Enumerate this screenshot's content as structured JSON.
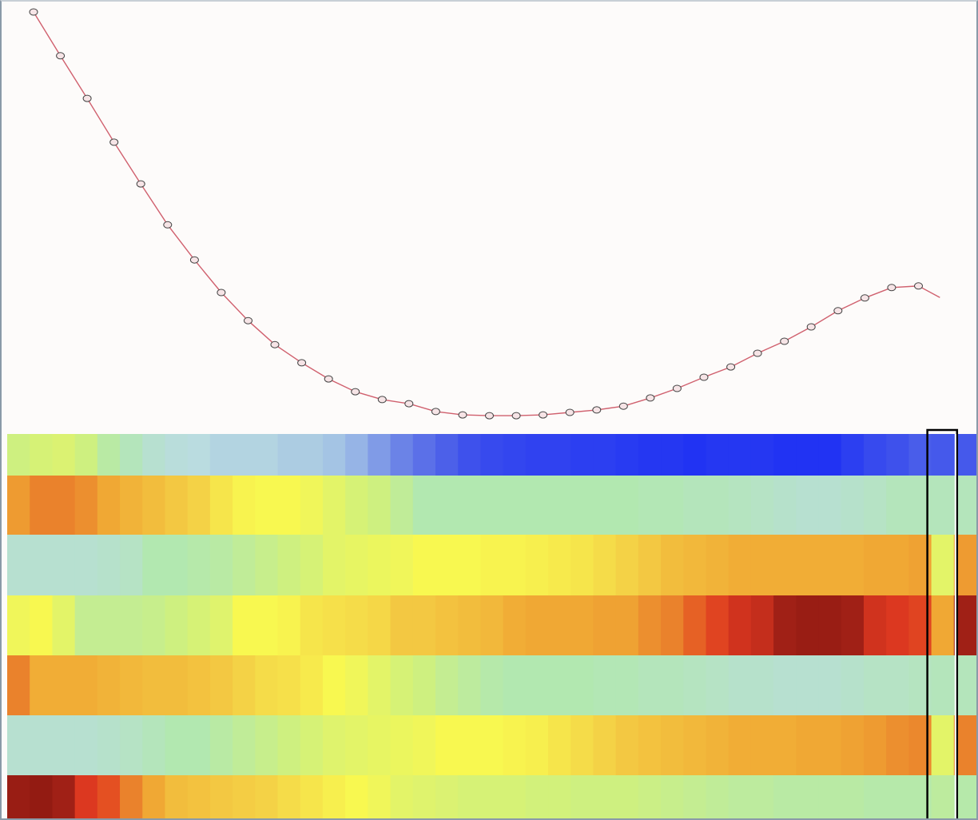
{
  "chart_data": [
    {
      "type": "line",
      "markers": "circle",
      "line_color": "#d0606e",
      "marker_stroke": "#444444",
      "marker_fill": "#f6e4e6",
      "axes_visible": false,
      "grid": false,
      "x": [
        1,
        2,
        3,
        4,
        5,
        6,
        7,
        8,
        9,
        10,
        11,
        12,
        13,
        14,
        15,
        16,
        17,
        18,
        19,
        20,
        21,
        22,
        23,
        24,
        25,
        26,
        27,
        28,
        29,
        30,
        31,
        32,
        33,
        34
      ],
      "y": [
        100,
        89.4,
        79.1,
        68.5,
        58.4,
        48.5,
        40.0,
        32.1,
        25.3,
        19.5,
        15.1,
        11.2,
        8.1,
        6.2,
        5.2,
        3.3,
        2.5,
        2.3,
        2.3,
        2.5,
        3.1,
        3.7,
        4.6,
        6.6,
        8.9,
        11.6,
        14.1,
        17.4,
        20.3,
        23.8,
        27.7,
        30.8,
        33.3,
        33.7
      ],
      "tail": {
        "x": 34.8,
        "y": 30.9
      }
    },
    {
      "type": "heatmap",
      "colormap": "jet (pastel)",
      "value_range": [
        0,
        1
      ],
      "selected_column": 41,
      "selection_color": "#000000",
      "rows": [
        [
          0.5,
          0.52,
          0.53,
          0.5,
          0.44,
          0.4,
          0.36,
          0.34,
          0.33,
          0.32,
          0.32,
          0.32,
          0.31,
          0.31,
          0.3,
          0.28,
          0.24,
          0.2,
          0.17,
          0.14,
          0.1,
          0.08,
          0.07,
          0.06,
          0.06,
          0.05,
          0.05,
          0.04,
          0.03,
          0.03,
          0.02,
          0.03,
          0.03,
          0.03,
          0.02,
          0.02,
          0.02,
          0.05,
          0.08,
          0.1,
          0.13,
          0.12,
          0.12
        ],
        [
          0.78,
          0.82,
          0.82,
          0.8,
          0.76,
          0.74,
          0.72,
          0.7,
          0.68,
          0.64,
          0.61,
          0.6,
          0.6,
          0.58,
          0.55,
          0.52,
          0.5,
          0.46,
          0.42,
          0.42,
          0.42,
          0.42,
          0.42,
          0.42,
          0.42,
          0.42,
          0.42,
          0.42,
          0.41,
          0.41,
          0.4,
          0.4,
          0.39,
          0.38,
          0.37,
          0.36,
          0.36,
          0.37,
          0.38,
          0.4,
          0.4,
          0.4,
          0.4
        ],
        [
          0.36,
          0.36,
          0.36,
          0.36,
          0.37,
          0.38,
          0.42,
          0.42,
          0.43,
          0.44,
          0.46,
          0.48,
          0.5,
          0.52,
          0.55,
          0.56,
          0.57,
          0.58,
          0.6,
          0.6,
          0.6,
          0.61,
          0.61,
          0.62,
          0.63,
          0.64,
          0.66,
          0.68,
          0.7,
          0.72,
          0.73,
          0.74,
          0.75,
          0.75,
          0.75,
          0.75,
          0.75,
          0.75,
          0.76,
          0.76,
          0.77,
          0.55,
          0.78
        ],
        [
          0.58,
          0.6,
          0.55,
          0.47,
          0.47,
          0.47,
          0.48,
          0.5,
          0.52,
          0.54,
          0.6,
          0.6,
          0.61,
          0.64,
          0.65,
          0.66,
          0.67,
          0.7,
          0.7,
          0.71,
          0.72,
          0.73,
          0.75,
          0.76,
          0.76,
          0.76,
          0.77,
          0.77,
          0.8,
          0.82,
          0.86,
          0.9,
          0.93,
          0.94,
          0.97,
          0.98,
          0.98,
          0.97,
          0.93,
          0.92,
          0.9,
          0.76,
          0.97
        ],
        [
          0.82,
          0.75,
          0.75,
          0.75,
          0.74,
          0.73,
          0.72,
          0.72,
          0.71,
          0.7,
          0.68,
          0.66,
          0.65,
          0.63,
          0.6,
          0.58,
          0.55,
          0.52,
          0.5,
          0.47,
          0.45,
          0.43,
          0.42,
          0.42,
          0.42,
          0.42,
          0.41,
          0.41,
          0.4,
          0.4,
          0.39,
          0.38,
          0.37,
          0.37,
          0.36,
          0.36,
          0.36,
          0.37,
          0.38,
          0.38,
          0.39,
          0.4,
          0.4
        ],
        [
          0.36,
          0.36,
          0.36,
          0.36,
          0.37,
          0.38,
          0.4,
          0.42,
          0.42,
          0.44,
          0.46,
          0.48,
          0.5,
          0.52,
          0.54,
          0.55,
          0.56,
          0.57,
          0.58,
          0.6,
          0.6,
          0.6,
          0.61,
          0.62,
          0.64,
          0.66,
          0.68,
          0.7,
          0.71,
          0.72,
          0.73,
          0.74,
          0.75,
          0.75,
          0.75,
          0.76,
          0.76,
          0.77,
          0.78,
          0.8,
          0.81,
          0.55,
          0.82
        ],
        [
          0.98,
          0.99,
          0.97,
          0.92,
          0.88,
          0.82,
          0.76,
          0.72,
          0.71,
          0.7,
          0.69,
          0.68,
          0.66,
          0.64,
          0.62,
          0.6,
          0.58,
          0.55,
          0.54,
          0.53,
          0.52,
          0.52,
          0.52,
          0.51,
          0.51,
          0.5,
          0.5,
          0.5,
          0.49,
          0.48,
          0.47,
          0.46,
          0.45,
          0.45,
          0.44,
          0.44,
          0.44,
          0.44,
          0.43,
          0.43,
          0.43,
          0.45,
          0.43
        ]
      ]
    }
  ]
}
